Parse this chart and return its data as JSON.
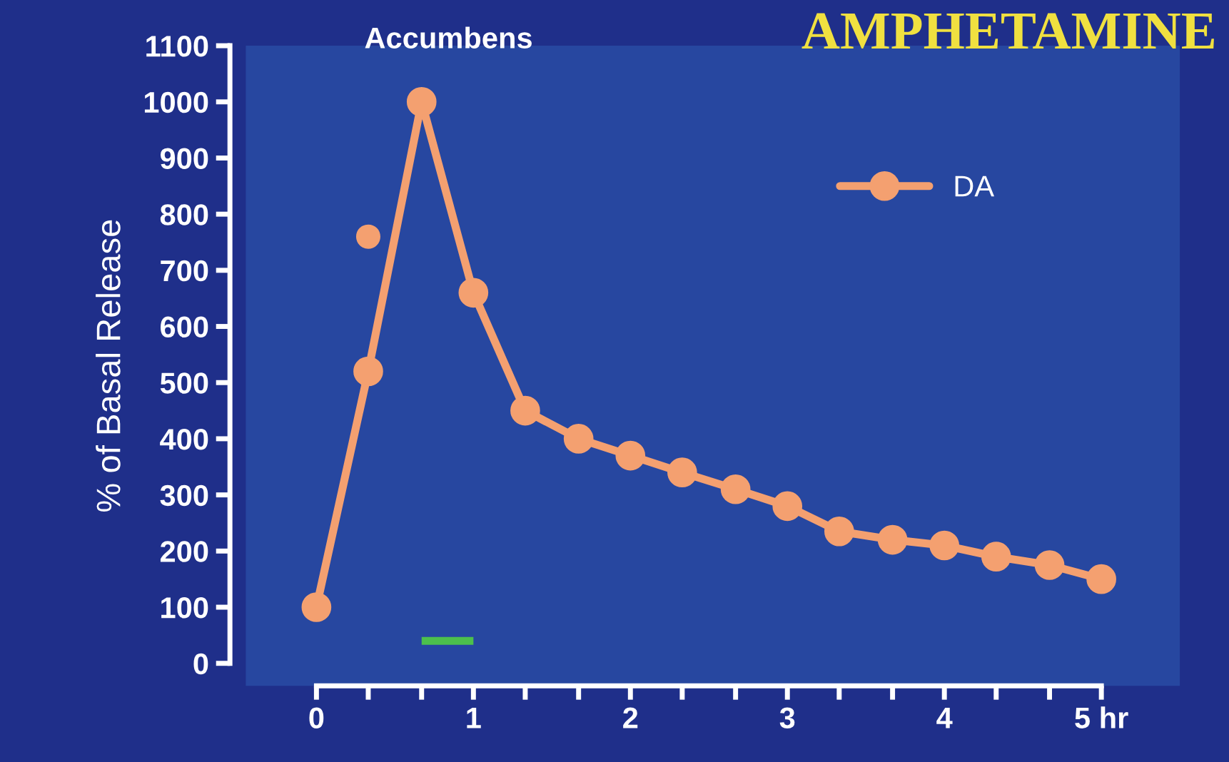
{
  "chart_data": {
    "type": "line",
    "title": "AMPHETAMINE",
    "subtitle": "Accumbens",
    "ylabel": "% of Basal Release",
    "series": [
      {
        "name": "DA",
        "color": "#f4a070",
        "x": [
          0,
          0.33,
          0.67,
          1,
          1.33,
          1.67,
          2,
          2.33,
          2.67,
          3,
          3.33,
          3.67,
          4,
          4.33,
          4.67,
          5
        ],
        "values": [
          100,
          520,
          1000,
          660,
          450,
          400,
          370,
          340,
          310,
          280,
          235,
          220,
          210,
          190,
          175,
          150
        ]
      },
      {
        "color": "#f4a070",
        "type": "scatter",
        "x": [
          0.33
        ],
        "values": [
          760
        ]
      },
      {
        "color": "#4cc04c",
        "marker": "none",
        "x": [
          0.67,
          1
        ],
        "values": [
          40,
          40
        ]
      }
    ],
    "xlim": [
      -0.45,
      5.5
    ],
    "ylim": [
      -40,
      1100
    ],
    "xticks": [
      0,
      {
        "value": 0.33,
        "label": null
      },
      {
        "value": 0.67,
        "label": null
      },
      1,
      {
        "value": 1.33,
        "label": null
      },
      {
        "value": 1.67,
        "label": null
      },
      2,
      {
        "value": 2.33,
        "label": null
      },
      {
        "value": 2.67,
        "label": null
      },
      3,
      {
        "value": 3.33,
        "label": null
      },
      {
        "value": 3.67,
        "label": null
      },
      4,
      {
        "value": 4.33,
        "label": null
      },
      {
        "value": 4.67,
        "label": null
      },
      {
        "value": 5,
        "label": "5 hr"
      }
    ],
    "yticks": [
      0,
      100,
      200,
      300,
      400,
      500,
      600,
      700,
      800,
      900,
      1000,
      1100
    ],
    "marker": "circle",
    "line_style": "solid",
    "grid": false,
    "legend": "top right"
  }
}
